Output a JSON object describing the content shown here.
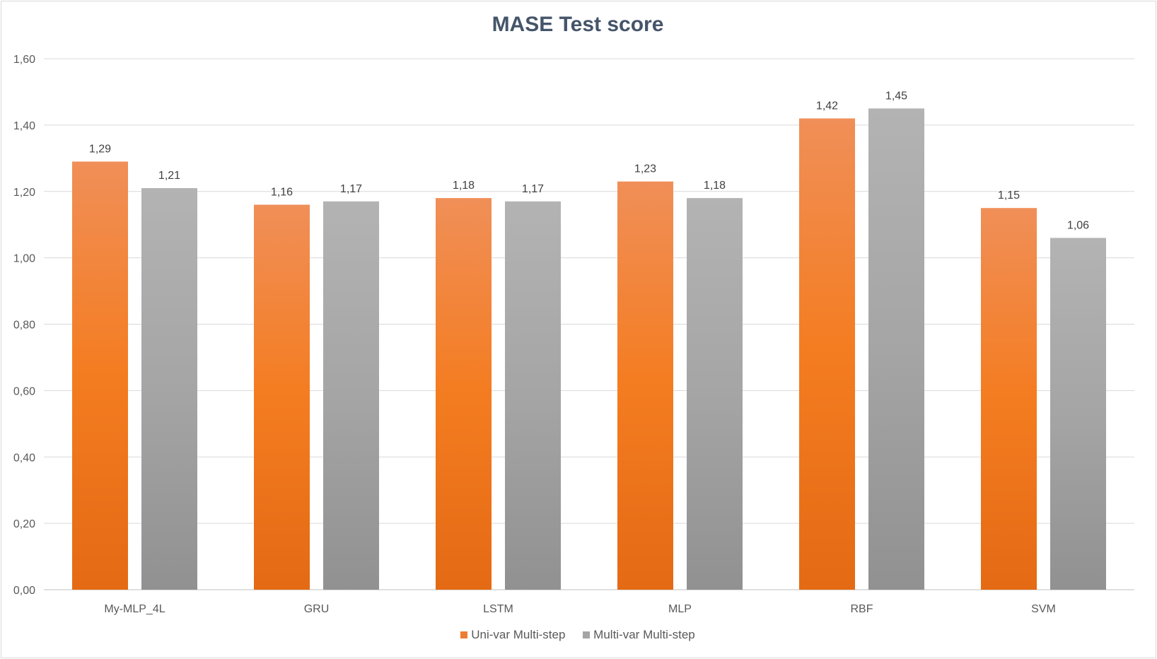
{
  "chart_data": {
    "type": "bar",
    "title": "MASE Test score",
    "categories": [
      "My-MLP_4L",
      "GRU",
      "LSTM",
      "MLP",
      "RBF",
      "SVM"
    ],
    "series": [
      {
        "name": "Uni-var Multi-step",
        "values": [
          1.29,
          1.16,
          1.18,
          1.23,
          1.42,
          1.15
        ],
        "labels": [
          "1,29",
          "1,16",
          "1,18",
          "1,23",
          "1,42",
          "1,15"
        ],
        "color": "#ed7d31",
        "gradient": [
          "#f08f58",
          "#f47c20",
          "#e46a14"
        ]
      },
      {
        "name": "Multi-var Multi-step",
        "values": [
          1.21,
          1.17,
          1.17,
          1.18,
          1.45,
          1.06
        ],
        "labels": [
          "1,21",
          "1,17",
          "1,17",
          "1,18",
          "1,45",
          "1,06"
        ],
        "color": "#a5a5a5",
        "gradient": [
          "#b3b3b3",
          "#a5a5a5",
          "#919191"
        ]
      }
    ],
    "ylim": [
      0,
      1.6
    ],
    "yticks": [
      "0,00",
      "0,20",
      "0,40",
      "0,60",
      "0,80",
      "1,00",
      "1,20",
      "1,40",
      "1,60"
    ],
    "grid": true,
    "legend_position": "bottom"
  }
}
